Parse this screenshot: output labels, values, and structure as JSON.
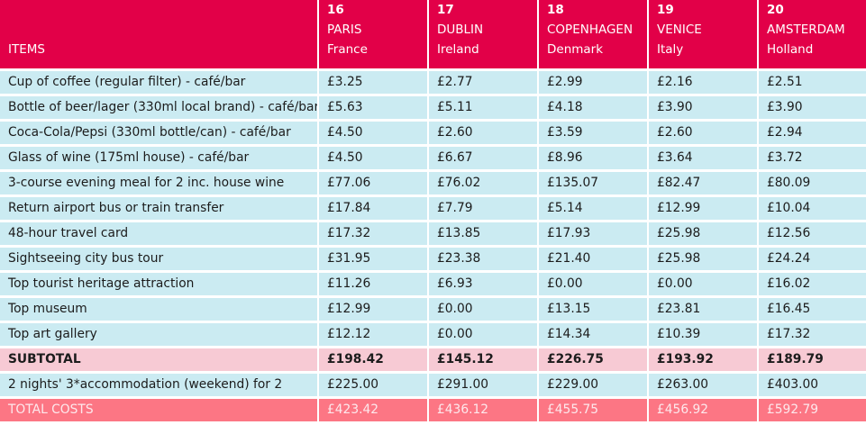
{
  "table": {
    "header": {
      "items_label": "ITEMS",
      "cities": [
        {
          "rank": "16",
          "city": "PARIS",
          "country": "France"
        },
        {
          "rank": "17",
          "city": "DUBLIN",
          "country": "Ireland"
        },
        {
          "rank": "18",
          "city": "COPENHAGEN",
          "country": "Denmark"
        },
        {
          "rank": "19",
          "city": "VENICE",
          "country": "Italy"
        },
        {
          "rank": "20",
          "city": "AMSTERDAM",
          "country": "Holland"
        }
      ]
    },
    "rows": [
      {
        "item": "Cup of coffee (regular filter) - café/bar",
        "values": [
          "£3.25",
          "£2.77",
          "£2.99",
          "£2.16",
          "£2.51"
        ]
      },
      {
        "item": "Bottle of beer/lager (330ml local brand) - café/bar",
        "values": [
          "£5.63",
          "£5.11",
          "£4.18",
          "£3.90",
          "£3.90"
        ]
      },
      {
        "item": "Coca-Cola/Pepsi (330ml bottle/can) - café/bar",
        "values": [
          "£4.50",
          "£2.60",
          "£3.59",
          "£2.60",
          "£2.94"
        ]
      },
      {
        "item": "Glass of wine (175ml house) - café/bar",
        "values": [
          "£4.50",
          "£6.67",
          "£8.96",
          "£3.64",
          "£3.72"
        ]
      },
      {
        "item": "3-course evening meal for 2 inc. house wine",
        "values": [
          "£77.06",
          "£76.02",
          "£135.07",
          "£82.47",
          "£80.09"
        ]
      },
      {
        "item": "Return airport bus or train transfer",
        "values": [
          "£17.84",
          "£7.79",
          "£5.14",
          "£12.99",
          "£10.04"
        ]
      },
      {
        "item": "48-hour travel card",
        "values": [
          "£17.32",
          "£13.85",
          "£17.93",
          "£25.98",
          "£12.56"
        ]
      },
      {
        "item": "Sightseeing city bus tour",
        "values": [
          "£31.95",
          "£23.38",
          "£21.40",
          "£25.98",
          "£24.24"
        ]
      },
      {
        "item": "Top tourist heritage attraction",
        "values": [
          "£11.26",
          "£6.93",
          "£0.00",
          "£0.00",
          "£16.02"
        ]
      },
      {
        "item": "Top museum",
        "values": [
          "£12.99",
          "£0.00",
          "£13.15",
          "£23.81",
          "£16.45"
        ]
      },
      {
        "item": "Top art gallery",
        "values": [
          "£12.12",
          "£0.00",
          "£14.34",
          "£10.39",
          "£17.32"
        ]
      }
    ],
    "subtotal": {
      "item": "SUBTOTAL",
      "values": [
        "£198.42",
        "£145.12",
        "£226.75",
        "£193.92",
        "£189.79"
      ]
    },
    "accommodation": {
      "item": "2 nights' 3*accommodation (weekend) for 2",
      "values": [
        "£225.00",
        "£291.00",
        "£229.00",
        "£263.00",
        "£403.00"
      ]
    },
    "total": {
      "item": "TOTAL COSTS",
      "values": [
        "£423.42",
        "£436.12",
        "£455.75",
        "£456.92",
        "£592.79"
      ]
    }
  },
  "colors": {
    "header_bg": "#e20048",
    "row_bg": "#cbebf2",
    "subtotal_bg": "#f7cad4",
    "total_bg": "#fc7684"
  }
}
